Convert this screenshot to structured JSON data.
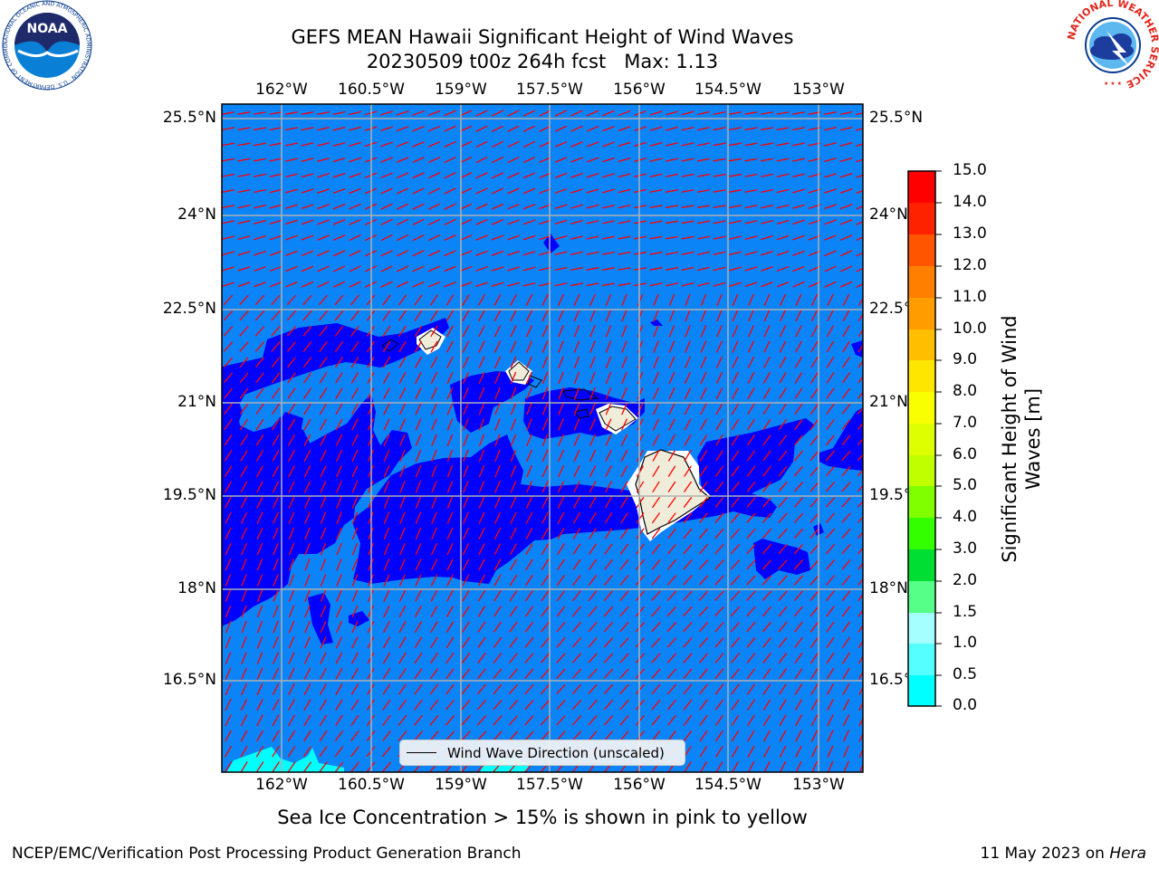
{
  "title": {
    "line1": "GEFS MEAN Hawaii Significant Height of Wind Waves",
    "line2": "20230509 t00z 264h fcst   Max: 1.13"
  },
  "map": {
    "lon_labels": [
      "162°W",
      "160.5°W",
      "159°W",
      "157.5°W",
      "156°W",
      "154.5°W",
      "153°W"
    ],
    "lat_labels": [
      "25.5°N",
      "24°N",
      "22.5°N",
      "21°N",
      "19.5°N",
      "18°N",
      "16.5°N"
    ],
    "colors": {
      "ocean_0_0p5": "#0000ff",
      "ocean_0p5_1": "#0b84f7",
      "ocean_1_1p5": "#00ffff",
      "land": "#efedd9",
      "arrow": "#ff0000",
      "grid": "#b0b0b0"
    },
    "legend_label": "Wind Wave Direction (unscaled)"
  },
  "colorbar": {
    "label": "Significant Height of Wind Waves [m]",
    "ticks": [
      "15.0",
      "14.0",
      "13.0",
      "12.0",
      "11.0",
      "10.0",
      "9.0",
      "8.0",
      "7.0",
      "6.0",
      "5.0",
      "4.0",
      "3.0",
      "2.0",
      "1.5",
      "1.0",
      "0.5",
      "0.0"
    ],
    "bands": [
      "#ff0000",
      "#ff2200",
      "#ff5500",
      "#ff7f00",
      "#ff9d00",
      "#ffbf00",
      "#ffe600",
      "#f9ff00",
      "#ddff00",
      "#bfff00",
      "#7fff00",
      "#33ff00",
      "#00dd33",
      "#55ff88",
      "#a6ffff",
      "#55ffff",
      "#00ffff",
      "#0b84f7",
      "#0000ff"
    ]
  },
  "note": "Sea Ice Concentration > 15% is shown in pink to yellow",
  "footer": {
    "left": "NCEP/EMC/Verification Post Processing Product Generation Branch",
    "right_prefix": "11 May 2023 on ",
    "right_machine": "Hera"
  },
  "logos": {
    "noaa": "NOAA",
    "noaa_ring": "NATIONAL OCEANIC AND ATMOSPHERIC ADMINISTRATION · U.S. DEPARTMENT OF COMMERCE",
    "nws_ring": "NATIONAL WEATHER SERVICE"
  }
}
